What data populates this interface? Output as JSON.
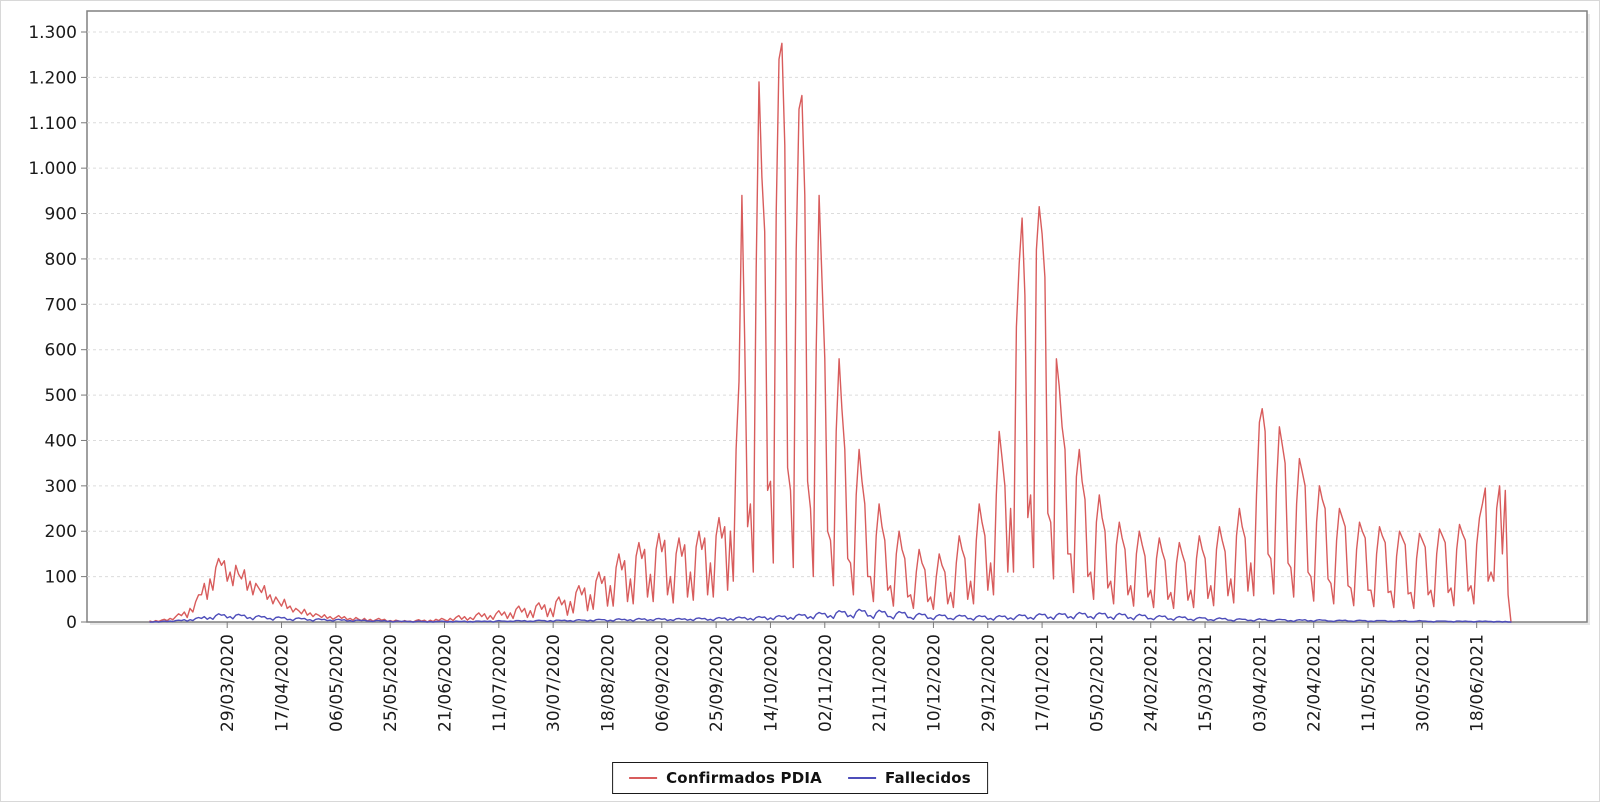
{
  "chart_data": {
    "type": "line",
    "title": "",
    "xlabel": "",
    "ylabel": "",
    "grid": "dashed-horizontal",
    "legend_position": "bottom-center",
    "x_axis": {
      "tick_labels": [
        "29/03/2020",
        "17/04/2020",
        "06/05/2020",
        "25/05/2020",
        "21/06/2020",
        "11/07/2020",
        "30/07/2020",
        "18/08/2020",
        "06/09/2020",
        "25/09/2020",
        "14/10/2020",
        "02/11/2020",
        "21/11/2020",
        "10/12/2020",
        "29/12/2020",
        "17/01/2021",
        "05/02/2021",
        "24/02/2021",
        "15/03/2021",
        "03/04/2021",
        "22/04/2021",
        "11/05/2021",
        "30/05/2021",
        "18/06/2021"
      ],
      "first_tick_index": 27,
      "tick_step": 19
    },
    "y_axis": {
      "tick_labels": [
        "0",
        "100",
        "200",
        "300",
        "400",
        "500",
        "600",
        "700",
        "800",
        "900",
        "1.000",
        "1.100",
        "1.200",
        "1.300"
      ],
      "tick_values": [
        0,
        100,
        200,
        300,
        400,
        500,
        600,
        700,
        800,
        900,
        1000,
        1100,
        1200,
        1300
      ],
      "ylim": [
        0,
        1300
      ]
    },
    "series": [
      {
        "name": "Confirmados PDIA",
        "color": "#d85c5c",
        "values": [
          2,
          0,
          3,
          1,
          4,
          6,
          3,
          8,
          5,
          12,
          18,
          14,
          22,
          10,
          30,
          22,
          45,
          60,
          60,
          85,
          50,
          95,
          70,
          120,
          140,
          125,
          135,
          90,
          110,
          80,
          125,
          105,
          95,
          115,
          70,
          90,
          60,
          85,
          75,
          65,
          80,
          50,
          60,
          40,
          55,
          45,
          35,
          50,
          30,
          35,
          22,
          30,
          25,
          18,
          28,
          15,
          20,
          12,
          18,
          15,
          10,
          16,
          8,
          12,
          6,
          10,
          14,
          8,
          12,
          5,
          8,
          4,
          10,
          6,
          3,
          8,
          2,
          6,
          2,
          5,
          8,
          4,
          6,
          1,
          3,
          1,
          4,
          2,
          0,
          3,
          1,
          2,
          0,
          3,
          5,
          2,
          4,
          0,
          4,
          1,
          6,
          3,
          8,
          5,
          2,
          8,
          3,
          10,
          14,
          6,
          12,
          4,
          10,
          5,
          15,
          20,
          12,
          18,
          6,
          14,
          6,
          18,
          25,
          15,
          22,
          8,
          20,
          8,
          28,
          35,
          22,
          30,
          10,
          25,
          10,
          35,
          42,
          28,
          38,
          12,
          30,
          12,
          45,
          55,
          38,
          48,
          15,
          45,
          20,
          65,
          80,
          60,
          75,
          25,
          60,
          28,
          90,
          110,
          85,
          100,
          35,
          80,
          35,
          120,
          150,
          115,
          135,
          45,
          95,
          40,
          145,
          175,
          140,
          160,
          55,
          105,
          45,
          160,
          195,
          155,
          180,
          60,
          100,
          42,
          150,
          185,
          145,
          170,
          55,
          110,
          48,
          165,
          200,
          160,
          185,
          60,
          130,
          55,
          190,
          230,
          185,
          210,
          70,
          200,
          90,
          380,
          530,
          940,
          620,
          210,
          260,
          110,
          780,
          1190,
          980,
          860,
          290,
          310,
          130,
          900,
          1240,
          1275,
          1050,
          340,
          290,
          120,
          820,
          1130,
          1160,
          940,
          310,
          250,
          100,
          600,
          940,
          760,
          580,
          200,
          180,
          80,
          420,
          580,
          470,
          380,
          140,
          130,
          60,
          280,
          380,
          310,
          260,
          100,
          100,
          45,
          190,
          260,
          210,
          180,
          70,
          80,
          35,
          150,
          200,
          160,
          140,
          55,
          60,
          30,
          110,
          160,
          130,
          115,
          45,
          55,
          28,
          100,
          150,
          125,
          110,
          40,
          65,
          32,
          130,
          190,
          160,
          140,
          50,
          90,
          40,
          180,
          260,
          220,
          190,
          70,
          130,
          60,
          280,
          420,
          360,
          300,
          110,
          250,
          110,
          650,
          790,
          890,
          720,
          230,
          280,
          120,
          820,
          915,
          855,
          760,
          240,
          220,
          95,
          580,
          520,
          430,
          380,
          150,
          150,
          65,
          320,
          380,
          310,
          270,
          100,
          110,
          50,
          220,
          280,
          230,
          200,
          75,
          90,
          40,
          170,
          220,
          185,
          160,
          60,
          80,
          35,
          150,
          200,
          170,
          145,
          55,
          70,
          32,
          140,
          185,
          155,
          135,
          50,
          65,
          30,
          130,
          175,
          150,
          130,
          48,
          70,
          32,
          140,
          190,
          160,
          140,
          52,
          80,
          36,
          160,
          210,
          180,
          155,
          58,
          95,
          42,
          190,
          250,
          210,
          185,
          68,
          130,
          58,
          280,
          440,
          470,
          420,
          150,
          140,
          62,
          300,
          430,
          390,
          350,
          130,
          120,
          55,
          260,
          360,
          330,
          300,
          110,
          100,
          46,
          220,
          300,
          270,
          250,
          95,
          85,
          40,
          180,
          250,
          230,
          210,
          80,
          75,
          36,
          160,
          220,
          200,
          185,
          70,
          70,
          34,
          150,
          210,
          190,
          175,
          65,
          68,
          32,
          145,
          200,
          185,
          170,
          62,
          65,
          30,
          140,
          195,
          180,
          165,
          60,
          70,
          34,
          150,
          205,
          190,
          175,
          65,
          75,
          36,
          160,
          215,
          195,
          180,
          68,
          80,
          40,
          170,
          230,
          260,
          295,
          90,
          110,
          90,
          250,
          300,
          150,
          290,
          60,
          0
        ]
      },
      {
        "name": "Fallecidos",
        "color": "#4d4dba",
        "values": [
          0,
          0,
          1,
          0,
          1,
          2,
          1,
          2,
          1,
          3,
          4,
          3,
          5,
          2,
          5,
          3,
          8,
          10,
          8,
          12,
          6,
          10,
          6,
          14,
          18,
          15,
          16,
          9,
          12,
          7,
          15,
          17,
          14,
          15,
          8,
          10,
          5,
          12,
          14,
          11,
          12,
          7,
          8,
          4,
          10,
          11,
          9,
          10,
          5,
          6,
          3,
          8,
          9,
          7,
          8,
          4,
          5,
          2,
          6,
          7,
          5,
          6,
          3,
          4,
          2,
          5,
          6,
          4,
          5,
          2,
          3,
          1,
          4,
          4,
          3,
          4,
          2,
          2,
          1,
          3,
          3,
          2,
          3,
          1,
          2,
          0,
          2,
          2,
          1,
          2,
          1,
          1,
          0,
          1,
          2,
          1,
          1,
          0,
          1,
          0,
          1,
          1,
          2,
          1,
          0,
          1,
          0,
          2,
          1,
          1,
          2,
          0,
          1,
          0,
          2,
          2,
          1,
          2,
          1,
          2,
          0,
          2,
          3,
          2,
          2,
          1,
          2,
          1,
          3,
          3,
          2,
          3,
          1,
          2,
          1,
          3,
          4,
          3,
          3,
          1,
          3,
          1,
          4,
          4,
          3,
          4,
          2,
          3,
          1,
          4,
          5,
          4,
          4,
          2,
          4,
          2,
          5,
          6,
          5,
          5,
          2,
          4,
          2,
          6,
          7,
          5,
          6,
          3,
          5,
          2,
          6,
          8,
          6,
          7,
          3,
          5,
          3,
          7,
          8,
          6,
          7,
          3,
          5,
          3,
          7,
          8,
          6,
          7,
          4,
          6,
          3,
          8,
          9,
          7,
          8,
          4,
          6,
          3,
          8,
          10,
          8,
          9,
          4,
          7,
          4,
          9,
          11,
          9,
          10,
          5,
          8,
          4,
          10,
          12,
          10,
          11,
          5,
          9,
          5,
          12,
          14,
          12,
          13,
          6,
          10,
          6,
          14,
          17,
          15,
          16,
          8,
          12,
          7,
          17,
          21,
          18,
          19,
          10,
          14,
          8,
          20,
          25,
          22,
          23,
          12,
          15,
          9,
          22,
          28,
          24,
          25,
          13,
          14,
          8,
          20,
          26,
          22,
          23,
          12,
          12,
          7,
          18,
          23,
          20,
          21,
          10,
          10,
          6,
          15,
          19,
          16,
          17,
          8,
          9,
          5,
          13,
          16,
          14,
          15,
          7,
          8,
          5,
          12,
          15,
          13,
          14,
          7,
          8,
          4,
          11,
          14,
          12,
          13,
          6,
          8,
          4,
          11,
          14,
          12,
          13,
          6,
          9,
          5,
          12,
          16,
          14,
          15,
          7,
          10,
          6,
          14,
          18,
          16,
          17,
          8,
          11,
          6,
          15,
          19,
          17,
          18,
          9,
          12,
          7,
          16,
          21,
          18,
          19,
          10,
          12,
          7,
          16,
          20,
          18,
          19,
          9,
          11,
          6,
          15,
          19,
          16,
          17,
          8,
          10,
          5,
          13,
          17,
          14,
          15,
          7,
          8,
          5,
          11,
          14,
          12,
          13,
          6,
          7,
          4,
          10,
          12,
          10,
          11,
          5,
          6,
          3,
          8,
          10,
          9,
          9,
          4,
          5,
          3,
          7,
          9,
          7,
          8,
          4,
          4,
          2,
          6,
          7,
          6,
          6,
          3,
          4,
          2,
          5,
          7,
          5,
          6,
          3,
          3,
          2,
          5,
          6,
          5,
          5,
          2,
          3,
          1,
          4,
          5,
          4,
          5,
          2,
          3,
          1,
          4,
          5,
          4,
          4,
          2,
          2,
          1,
          3,
          4,
          3,
          4,
          2,
          2,
          1,
          3,
          4,
          3,
          3,
          1,
          2,
          1,
          3,
          3,
          3,
          3,
          1,
          2,
          1,
          2,
          3,
          2,
          3,
          1,
          1,
          1,
          2,
          3,
          2,
          2,
          1,
          1,
          0,
          2,
          2,
          2,
          2,
          1,
          1,
          0,
          2,
          2,
          1,
          2,
          1,
          1,
          0,
          1,
          2,
          1,
          2,
          1,
          1,
          0,
          1,
          1,
          0,
          1,
          0,
          0
        ]
      }
    ]
  },
  "legend": {
    "confirmados_label": "Confirmados PDIA",
    "fallecidos_label": "Fallecidos"
  },
  "colors": {
    "confirmados": "#d85c5c",
    "fallecidos": "#4d4dba",
    "gridline": "#dcdcdc",
    "plot_border": "#808080",
    "tick_text": "#1a1a1a"
  }
}
